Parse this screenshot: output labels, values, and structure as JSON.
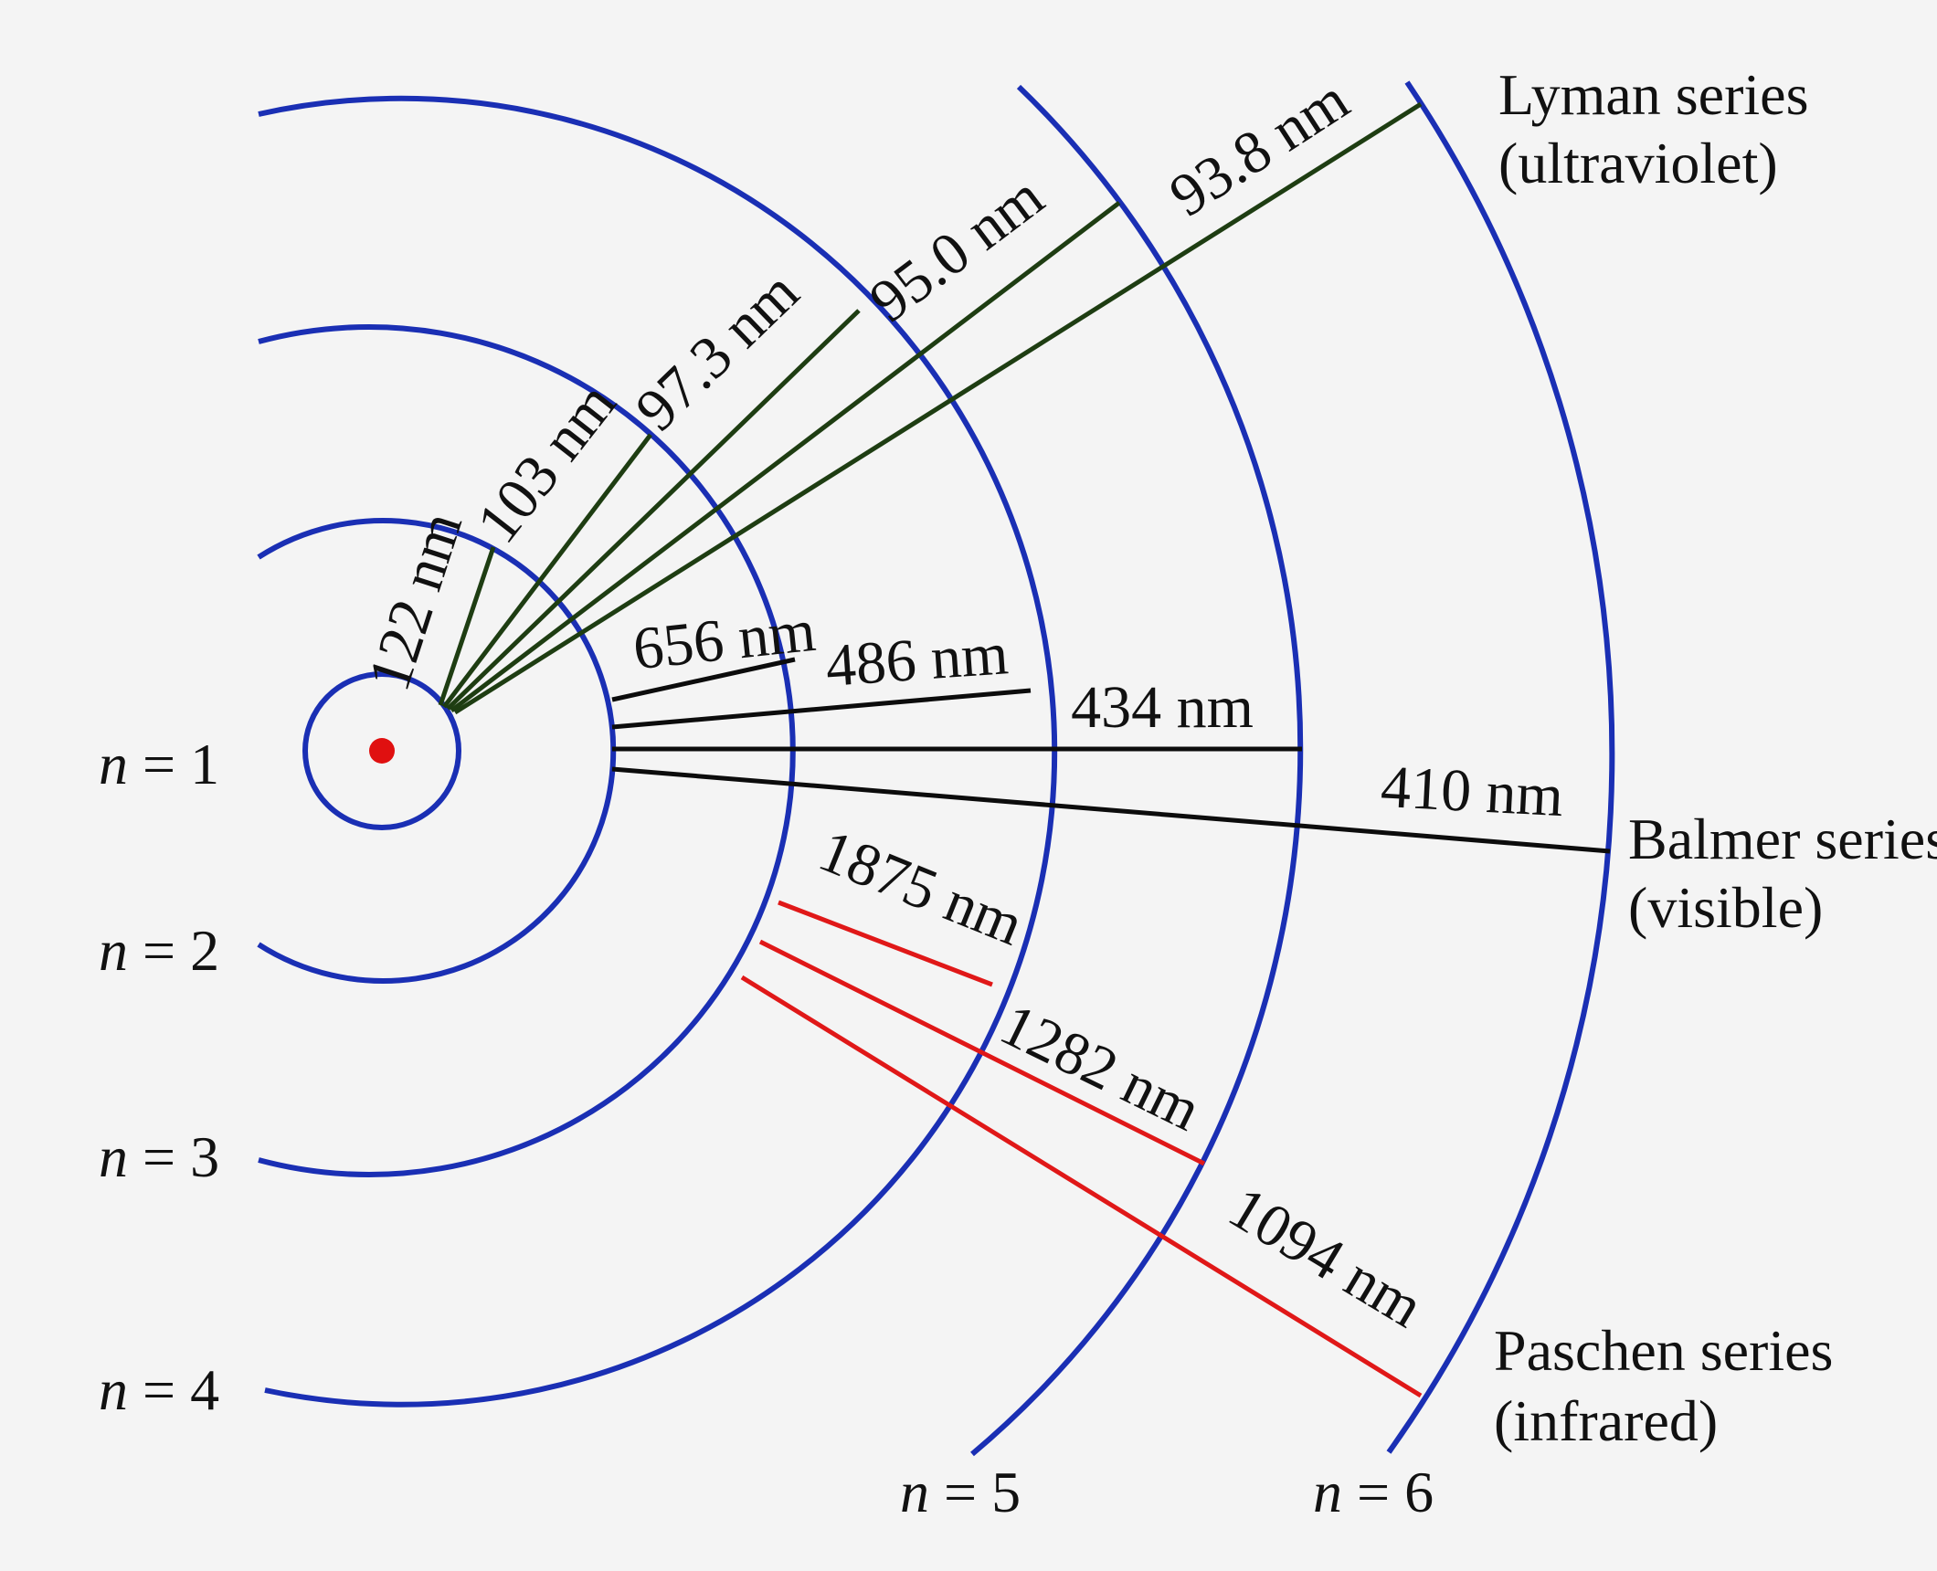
{
  "colors": {
    "orbit": "#1a2fb4",
    "nucleus": "#e01010",
    "lyman": "#1e3d12",
    "balmer": "#0c0c0c",
    "paschen": "#e01818",
    "background": "#f4f4f4"
  },
  "levels": [
    {
      "n_symbol": "n",
      "eq": " = 1"
    },
    {
      "n_symbol": "n",
      "eq": " = 2"
    },
    {
      "n_symbol": "n",
      "eq": " = 3"
    },
    {
      "n_symbol": "n",
      "eq": " = 4"
    },
    {
      "n_symbol": "n",
      "eq": " = 5"
    },
    {
      "n_symbol": "n",
      "eq": " = 6"
    }
  ],
  "series": [
    {
      "name": "Lyman series",
      "region": "(ultraviolet)",
      "lower_level": 1,
      "color_key": "lyman",
      "lines": [
        {
          "from": 2,
          "wavelength": "122 nm"
        },
        {
          "from": 3,
          "wavelength": "103 nm"
        },
        {
          "from": 4,
          "wavelength": "97.3 nm"
        },
        {
          "from": 5,
          "wavelength": "95.0 nm"
        },
        {
          "from": 6,
          "wavelength": "93.8 nm"
        }
      ]
    },
    {
      "name": "Balmer series",
      "region": "(visible)",
      "lower_level": 2,
      "color_key": "balmer",
      "lines": [
        {
          "from": 3,
          "wavelength": "656 nm"
        },
        {
          "from": 4,
          "wavelength": "486 nm"
        },
        {
          "from": 5,
          "wavelength": "434 nm"
        },
        {
          "from": 6,
          "wavelength": "410 nm"
        }
      ]
    },
    {
      "name": "Paschen series",
      "region": "(infrared)",
      "lower_level": 3,
      "color_key": "paschen",
      "lines": [
        {
          "from": 4,
          "wavelength": "1875 nm"
        },
        {
          "from": 5,
          "wavelength": "1282 nm"
        },
        {
          "from": 6,
          "wavelength": "1094 nm"
        }
      ]
    }
  ]
}
